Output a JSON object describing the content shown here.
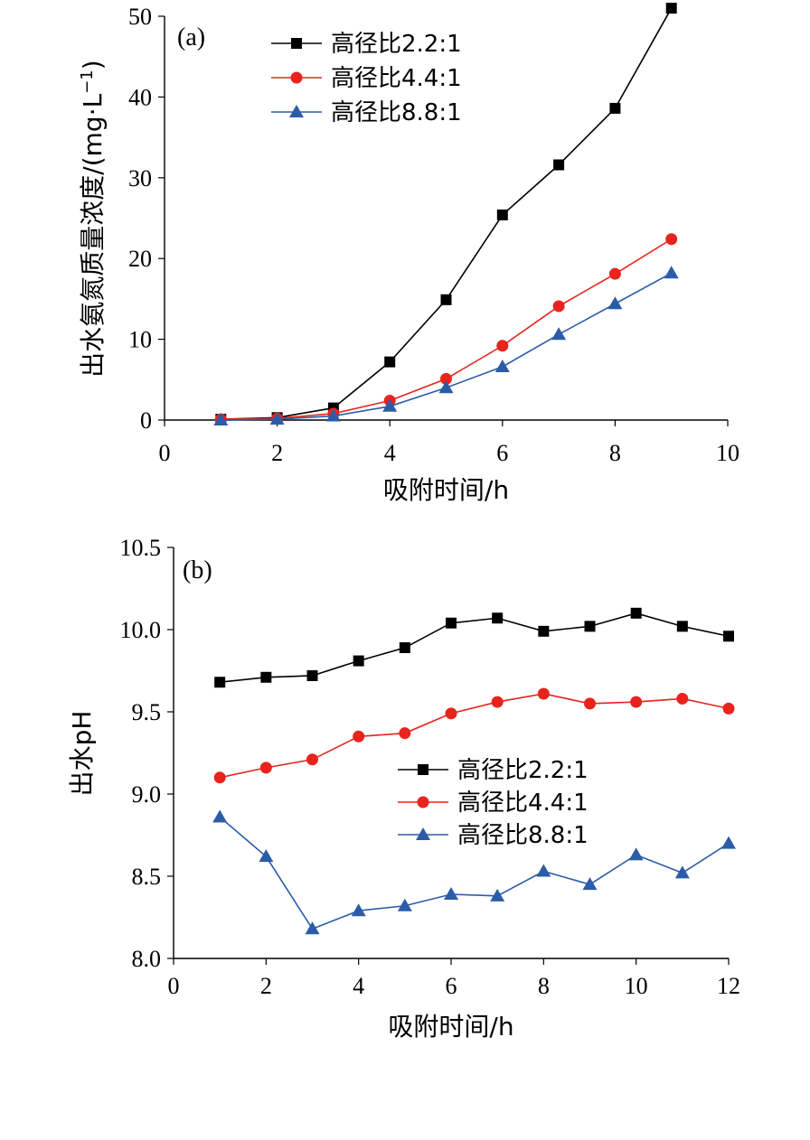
{
  "chart_data": [
    {
      "type": "line",
      "panel_label": "(a)",
      "xlabel": "吸附时间/h",
      "ylabel": "出水氨氮质量浓度/(mg·L",
      "ylabel_sup": "−1",
      "ylabel_close": ")",
      "xlim": [
        0,
        10
      ],
      "ylim": [
        0,
        50
      ],
      "xticks": [
        "0",
        "2",
        "4",
        "6",
        "8",
        "10"
      ],
      "yticks": [
        "0",
        "10",
        "20",
        "30",
        "40",
        "50"
      ],
      "grid": false,
      "legend_position": "top-center",
      "x": [
        1,
        2,
        3,
        4,
        5,
        6,
        7,
        8,
        9
      ],
      "series": [
        {
          "name": "高径比2.2:1",
          "marker": "square",
          "color": "#000000",
          "values": [
            0.1,
            0.3,
            1.5,
            7.2,
            14.9,
            25.4,
            31.6,
            38.6,
            51.0
          ]
        },
        {
          "name": "高径比4.4:1",
          "marker": "circle",
          "color": "#e8231d",
          "values": [
            0.1,
            0.2,
            0.8,
            2.4,
            5.1,
            9.2,
            14.1,
            18.1,
            22.4
          ]
        },
        {
          "name": "高径比8.8:1",
          "marker": "triangle",
          "color": "#2b5ca8",
          "values": [
            0.0,
            0.1,
            0.5,
            1.7,
            4.0,
            6.6,
            10.6,
            14.4,
            18.2
          ]
        }
      ]
    },
    {
      "type": "line",
      "panel_label": "(b)",
      "xlabel": "吸附时间/h",
      "ylabel": "出水pH",
      "xlim": [
        0,
        12
      ],
      "ylim": [
        8.0,
        10.5
      ],
      "xticks": [
        "0",
        "2",
        "4",
        "6",
        "8",
        "10",
        "12"
      ],
      "yticks": [
        "8.0",
        "8.5",
        "9.0",
        "9.5",
        "10.0",
        "10.5"
      ],
      "grid": false,
      "legend_position": "center-right",
      "x": [
        1,
        2,
        3,
        4,
        5,
        6,
        7,
        8,
        9,
        10,
        11,
        12
      ],
      "series": [
        {
          "name": "高径比2.2:1",
          "marker": "square",
          "color": "#000000",
          "values": [
            9.68,
            9.71,
            9.72,
            9.81,
            9.89,
            10.04,
            10.07,
            9.99,
            10.02,
            10.1,
            10.02,
            9.96
          ]
        },
        {
          "name": "高径比4.4:1",
          "marker": "circle",
          "color": "#e8231d",
          "values": [
            9.1,
            9.16,
            9.21,
            9.35,
            9.37,
            9.49,
            9.56,
            9.61,
            9.55,
            9.56,
            9.58,
            9.52
          ]
        },
        {
          "name": "高径比8.8:1",
          "marker": "triangle",
          "color": "#2b5ca8",
          "values": [
            8.86,
            8.62,
            8.18,
            8.29,
            8.32,
            8.39,
            8.38,
            8.53,
            8.45,
            8.63,
            8.52,
            8.7
          ]
        }
      ]
    }
  ]
}
